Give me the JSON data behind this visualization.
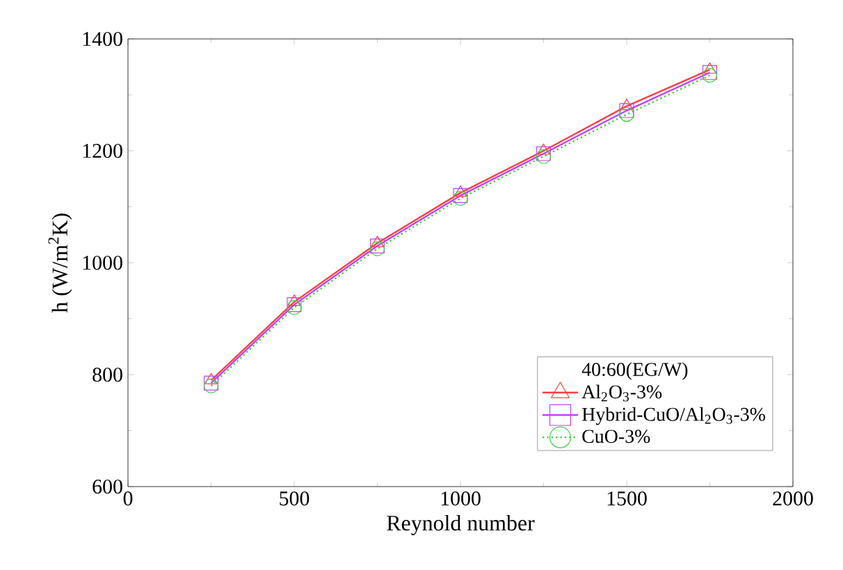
{
  "chart_data": {
    "type": "line",
    "xlabel": "Reynold number",
    "ylabel": "h (W/m$^{2}$K)",
    "legend_title": "40:60(EG/W)",
    "legend": "bottom right",
    "grid": false,
    "x": [
      250,
      500,
      750,
      1000,
      1250,
      1500,
      1750
    ],
    "xlim": [
      0,
      2000
    ],
    "xticks": [
      0,
      500,
      1000,
      1500,
      2000
    ],
    "ylim": [
      600,
      1400
    ],
    "yticks": [
      600,
      800,
      1000,
      1200,
      1400
    ],
    "series": [
      {
        "name": "Al$_{2}$O$_{3}$-3%",
        "color": "#ff4040",
        "marker": "triangle",
        "line_style": "solid",
        "values": [
          790,
          930,
          1035,
          1125,
          1200,
          1280,
          1345
        ]
      },
      {
        "name": "Hybrid-CuO/Al$_{2}$O$_{3}$-3%",
        "color": "#c040ff",
        "marker": "square",
        "line_style": "solid",
        "values": [
          785,
          925,
          1030,
          1120,
          1195,
          1272,
          1340
        ]
      },
      {
        "name": "CuO-3%",
        "color": "#40d040",
        "marker": "circle",
        "line_style": "dotted",
        "values": [
          780,
          920,
          1025,
          1115,
          1190,
          1265,
          1335
        ]
      }
    ]
  }
}
